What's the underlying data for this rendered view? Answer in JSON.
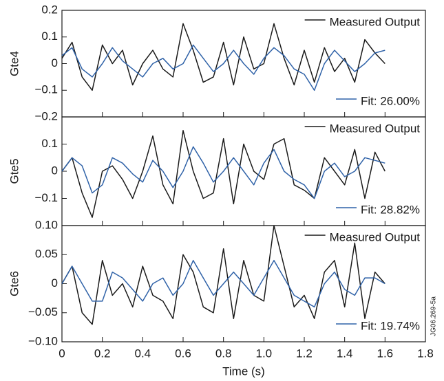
{
  "chart_data": [
    {
      "type": "line",
      "ylabel": "Gte4",
      "x": [
        0,
        0.05,
        0.1,
        0.15,
        0.2,
        0.25,
        0.3,
        0.35,
        0.4,
        0.45,
        0.5,
        0.55,
        0.6,
        0.65,
        0.7,
        0.75,
        0.8,
        0.85,
        0.9,
        0.95,
        1.0,
        1.05,
        1.1,
        1.15,
        1.2,
        1.25,
        1.3,
        1.35,
        1.4,
        1.45,
        1.5,
        1.55,
        1.6
      ],
      "series": [
        {
          "name": "Measured Output",
          "color": "#1a1a1a",
          "values": [
            0.02,
            0.08,
            -0.05,
            -0.1,
            0.07,
            0.0,
            0.05,
            -0.08,
            0.0,
            0.05,
            -0.02,
            -0.05,
            0.15,
            0.05,
            -0.07,
            -0.05,
            0.08,
            -0.08,
            0.1,
            -0.02,
            0.0,
            0.15,
            0.02,
            -0.08,
            0.05,
            -0.07,
            0.06,
            -0.03,
            0.02,
            -0.07,
            0.09,
            0.04,
            0.0
          ]
        },
        {
          "name": "Fit: 26.00%",
          "color": "#2f62a8",
          "values": [
            0.03,
            0.06,
            -0.02,
            -0.05,
            0.0,
            0.06,
            0.01,
            -0.02,
            -0.05,
            0.0,
            0.02,
            -0.02,
            0.0,
            0.07,
            0.02,
            -0.03,
            0.0,
            0.05,
            0.0,
            -0.04,
            0.02,
            0.06,
            0.03,
            -0.02,
            -0.04,
            -0.1,
            0.0,
            0.05,
            0.01,
            -0.03,
            0.0,
            0.04,
            0.05
          ]
        }
      ],
      "xlim": [
        0,
        1.8
      ],
      "ylim": [
        -0.2,
        0.2
      ],
      "yticks": [
        0.2,
        0.1,
        0,
        {
          "value": -0.1,
          "label": "−0.1"
        },
        {
          "value": -0.2,
          "label": "−0.2"
        }
      ]
    },
    {
      "type": "line",
      "ylabel": "Gte5",
      "x": [
        0,
        0.05,
        0.1,
        0.15,
        0.2,
        0.25,
        0.3,
        0.35,
        0.4,
        0.45,
        0.5,
        0.55,
        0.6,
        0.65,
        0.7,
        0.75,
        0.8,
        0.85,
        0.9,
        0.95,
        1.0,
        1.05,
        1.1,
        1.15,
        1.2,
        1.25,
        1.3,
        1.35,
        1.4,
        1.45,
        1.5,
        1.55,
        1.6
      ],
      "series": [
        {
          "name": "Measured Output",
          "color": "#1a1a1a",
          "values": [
            0.0,
            0.05,
            -0.08,
            -0.17,
            0.0,
            0.02,
            -0.03,
            -0.1,
            0.0,
            0.13,
            -0.05,
            -0.12,
            0.15,
            0.0,
            -0.1,
            -0.08,
            0.12,
            -0.12,
            0.1,
            0.0,
            -0.03,
            0.1,
            0.12,
            -0.05,
            -0.07,
            -0.1,
            0.05,
            0.0,
            -0.05,
            0.08,
            -0.1,
            0.07,
            0.0
          ]
        },
        {
          "name": "Fit: 28.82%",
          "color": "#2f62a8",
          "values": [
            0.0,
            0.05,
            0.02,
            -0.08,
            -0.05,
            0.05,
            0.03,
            -0.01,
            -0.04,
            0.04,
            0.0,
            -0.06,
            0.0,
            0.09,
            0.03,
            -0.04,
            0.0,
            0.05,
            0.0,
            -0.05,
            0.03,
            0.08,
            0.0,
            -0.03,
            -0.05,
            -0.1,
            0.0,
            0.03,
            -0.02,
            0.0,
            0.05,
            0.04,
            0.03
          ]
        }
      ],
      "xlim": [
        0,
        1.8
      ],
      "ylim": [
        -0.2,
        0.2
      ],
      "yticks": [
        0.1,
        0,
        {
          "value": -0.1,
          "label": "−0.1"
        }
      ]
    },
    {
      "type": "line",
      "ylabel": "Gte6",
      "xlabel": "Time (s)",
      "annotation": "JG06.269-5a",
      "x": [
        0,
        0.05,
        0.1,
        0.15,
        0.2,
        0.25,
        0.3,
        0.35,
        0.4,
        0.45,
        0.5,
        0.55,
        0.6,
        0.65,
        0.7,
        0.75,
        0.8,
        0.85,
        0.9,
        0.95,
        1.0,
        1.05,
        1.1,
        1.15,
        1.2,
        1.25,
        1.3,
        1.35,
        1.4,
        1.45,
        1.5,
        1.55,
        1.6
      ],
      "series": [
        {
          "name": "Measured Output",
          "color": "#1a1a1a",
          "values": [
            0.0,
            0.03,
            -0.05,
            -0.07,
            0.04,
            -0.02,
            0.0,
            -0.04,
            0.03,
            -0.02,
            -0.03,
            -0.06,
            0.05,
            0.02,
            -0.04,
            -0.05,
            0.06,
            -0.06,
            0.04,
            -0.02,
            -0.03,
            0.1,
            0.03,
            -0.04,
            -0.02,
            -0.06,
            0.02,
            0.04,
            -0.04,
            0.07,
            -0.06,
            0.02,
            0.0
          ]
        },
        {
          "name": "Fit: 19.74%",
          "color": "#2f62a8",
          "values": [
            0.0,
            0.03,
            0.0,
            -0.03,
            -0.03,
            0.02,
            0.01,
            -0.01,
            -0.03,
            0.0,
            0.01,
            -0.02,
            0.0,
            0.04,
            0.01,
            -0.02,
            0.0,
            0.02,
            0.0,
            -0.02,
            0.01,
            0.04,
            0.01,
            -0.02,
            -0.03,
            -0.04,
            0.0,
            0.02,
            -0.01,
            -0.02,
            0.01,
            0.01,
            0.0
          ]
        }
      ],
      "xlim": [
        0,
        1.8
      ],
      "ylim": [
        -0.1,
        0.1
      ],
      "yticks": [
        {
          "value": 0.1,
          "label": "0.10"
        },
        0.05,
        0,
        {
          "value": -0.05,
          "label": "−0.05"
        },
        {
          "value": -0.1,
          "label": "−0.10"
        }
      ],
      "xticks": [
        0,
        0.2,
        0.4,
        0.6,
        0.8,
        {
          "value": 1.0,
          "label": "1.0"
        },
        1.2,
        1.4,
        1.6,
        1.8
      ]
    }
  ]
}
